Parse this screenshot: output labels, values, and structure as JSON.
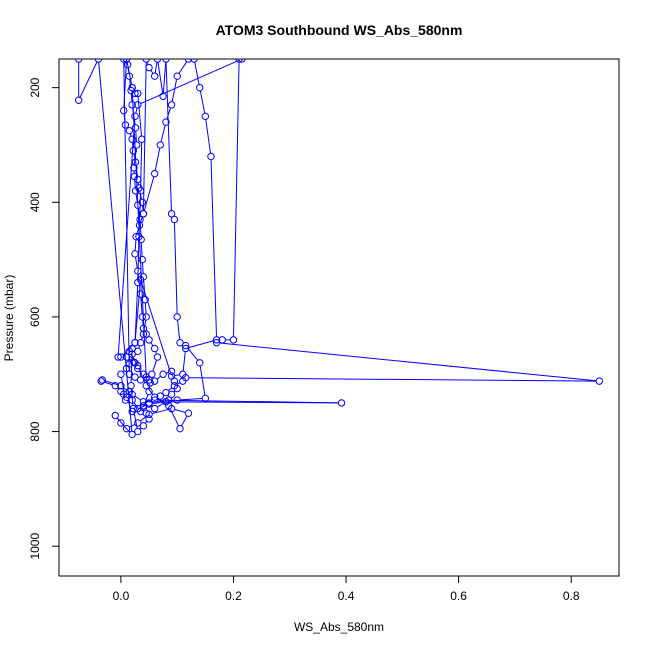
{
  "chart_data": {
    "type": "line",
    "title": "ATOM3 Southbound WS_Abs_580nm",
    "xlabel": "WS_Abs_580nm",
    "ylabel": "Pressure (mbar)",
    "xlim": [
      -0.11,
      0.885
    ],
    "ylim": [
      1052,
      150
    ],
    "y_reversed": true,
    "x_ticks": [
      0.0,
      0.2,
      0.4,
      0.6,
      0.8
    ],
    "x_tick_labels": [
      "0.0",
      "0.2",
      "0.4",
      "0.6",
      "0.8"
    ],
    "y_ticks": [
      200,
      400,
      600,
      800,
      1000
    ],
    "y_tick_labels": [
      "200",
      "400",
      "600",
      "800",
      "1000"
    ],
    "grid": false,
    "color": "#0000ff",
    "marker": "open-circle",
    "series": [
      {
        "points": [
          [
            -0.075,
            150
          ],
          [
            -0.075,
            222
          ],
          [
            -0.04,
            150
          ],
          [
            0.02,
            805
          ],
          [
            0.0,
            785
          ],
          [
            -0.01,
            772
          ],
          [
            0.01,
            795
          ],
          [
            0.03,
            785
          ],
          [
            0.05,
            770
          ],
          [
            0.09,
            760
          ],
          [
            0.12,
            768
          ],
          [
            0.105,
            795
          ],
          [
            0.085,
            755
          ],
          [
            0.06,
            740
          ],
          [
            0.045,
            720
          ],
          [
            0.03,
            685
          ],
          [
            0.015,
            660
          ],
          [
            0.0,
            670
          ],
          [
            0.025,
            645
          ],
          [
            0.03,
            540
          ],
          [
            0.032,
            460
          ],
          [
            0.035,
            380
          ],
          [
            0.037,
            290
          ],
          [
            0.03,
            210
          ],
          [
            0.02,
            200
          ],
          [
            0.01,
            150
          ],
          [
            0.005,
            240
          ],
          [
            0.008,
            265
          ],
          [
            0.015,
            275
          ],
          [
            0.02,
            290
          ],
          [
            0.022,
            310
          ],
          [
            0.026,
            330
          ],
          [
            0.03,
            360
          ],
          [
            0.032,
            375
          ],
          [
            0.038,
            400
          ],
          [
            0.04,
            420
          ],
          [
            0.045,
            150
          ],
          [
            0.05,
            165
          ],
          [
            0.06,
            180
          ],
          [
            0.065,
            150
          ],
          [
            0.075,
            215
          ],
          [
            0.08,
            150
          ],
          [
            0.09,
            420
          ],
          [
            0.095,
            430
          ],
          [
            0.1,
            600
          ],
          [
            0.105,
            645
          ],
          [
            0.115,
            650
          ],
          [
            0.14,
            680
          ],
          [
            0.15,
            742
          ],
          [
            0.1,
            745
          ],
          [
            0.08,
            748
          ],
          [
            0.05,
            752
          ],
          [
            0.03,
            760
          ],
          [
            0.02,
            765
          ],
          [
            0.01,
            740
          ],
          [
            0.0,
            730
          ],
          [
            -0.01,
            720
          ],
          [
            -0.035,
            712
          ],
          [
            -0.033,
            710
          ],
          [
            0.0,
            720
          ],
          [
            0.02,
            735
          ],
          [
            0.04,
            748
          ],
          [
            0.392,
            750
          ],
          [
            0.06,
            745
          ],
          [
            0.07,
            738
          ],
          [
            0.08,
            732
          ],
          [
            0.095,
            720
          ],
          [
            0.11,
            712
          ],
          [
            0.115,
            706
          ],
          [
            0.85,
            712
          ],
          [
            0.17,
            645
          ],
          [
            0.18,
            640
          ],
          [
            0.2,
            640
          ],
          [
            0.21,
            150
          ],
          [
            0.215,
            150
          ],
          [
            0.03,
            230
          ],
          [
            0.025,
            250
          ],
          [
            -0.005,
            670
          ],
          [
            0.01,
            670
          ],
          [
            0.025,
            680
          ],
          [
            0.03,
            690
          ],
          [
            0.04,
            700
          ],
          [
            0.05,
            710
          ],
          [
            0.06,
            712
          ],
          [
            0.075,
            700
          ],
          [
            0.09,
            695
          ],
          [
            0.095,
            712
          ],
          [
            0.1,
            725
          ],
          [
            0.09,
            735
          ],
          [
            0.085,
            745
          ],
          [
            0.06,
            760
          ],
          [
            0.05,
            750
          ],
          [
            0.04,
            755
          ],
          [
            0.035,
            765
          ],
          [
            0.02,
            745
          ],
          [
            0.015,
            730
          ],
          [
            0.005,
            735
          ],
          [
            0.008,
            745
          ],
          [
            0.0,
            700
          ],
          [
            0.01,
            690
          ],
          [
            0.015,
            682
          ],
          [
            0.023,
            679
          ],
          [
            0.02,
            665
          ],
          [
            0.03,
            660
          ],
          [
            0.035,
            645
          ],
          [
            0.04,
            630
          ],
          [
            0.045,
            600
          ],
          [
            0.043,
            570
          ],
          [
            0.04,
            530
          ],
          [
            0.038,
            500
          ],
          [
            0.036,
            465
          ],
          [
            0.034,
            430
          ],
          [
            0.03,
            405
          ],
          [
            0.026,
            380
          ],
          [
            0.024,
            355
          ],
          [
            0.023,
            340
          ],
          [
            0.028,
            300
          ],
          [
            0.026,
            270
          ],
          [
            0.02,
            230
          ],
          [
            0.018,
            205
          ],
          [
            0.015,
            180
          ],
          [
            0.012,
            160
          ],
          [
            0.01,
            150
          ],
          [
            0.005,
            150
          ],
          [
            0.015,
            700
          ],
          [
            0.025,
            705
          ],
          [
            0.035,
            710
          ],
          [
            0.055,
            700
          ],
          [
            0.065,
            670
          ],
          [
            0.06,
            655
          ],
          [
            0.05,
            640
          ],
          [
            0.045,
            630
          ],
          [
            0.04,
            620
          ],
          [
            0.038,
            600
          ],
          [
            0.035,
            560
          ],
          [
            0.03,
            520
          ],
          [
            0.025,
            490
          ],
          [
            0.027,
            460
          ],
          [
            0.033,
            440
          ],
          [
            0.04,
            420
          ],
          [
            0.06,
            350
          ],
          [
            0.07,
            300
          ],
          [
            0.08,
            260
          ],
          [
            0.09,
            230
          ],
          [
            0.1,
            180
          ],
          [
            0.12,
            150
          ],
          [
            0.13,
            150
          ],
          [
            0.14,
            200
          ],
          [
            0.15,
            250
          ],
          [
            0.16,
            320
          ],
          [
            0.17,
            640
          ],
          [
            0.115,
            655
          ],
          [
            0.11,
            700
          ],
          [
            0.09,
            703
          ],
          [
            0.035,
            535
          ],
          [
            0.025,
            645
          ],
          [
            0.02,
            655
          ],
          [
            0.018,
            720
          ],
          [
            0.022,
            760
          ],
          [
            0.03,
            800
          ],
          [
            0.04,
            790
          ],
          [
            0.05,
            778
          ],
          [
            0.045,
            768
          ],
          [
            0.04,
            758
          ],
          [
            0.05,
            730
          ],
          [
            0.052,
            715
          ],
          [
            0.045,
            705
          ],
          [
            0.02,
            200
          ],
          [
            0.025,
            210
          ]
        ]
      }
    ]
  }
}
